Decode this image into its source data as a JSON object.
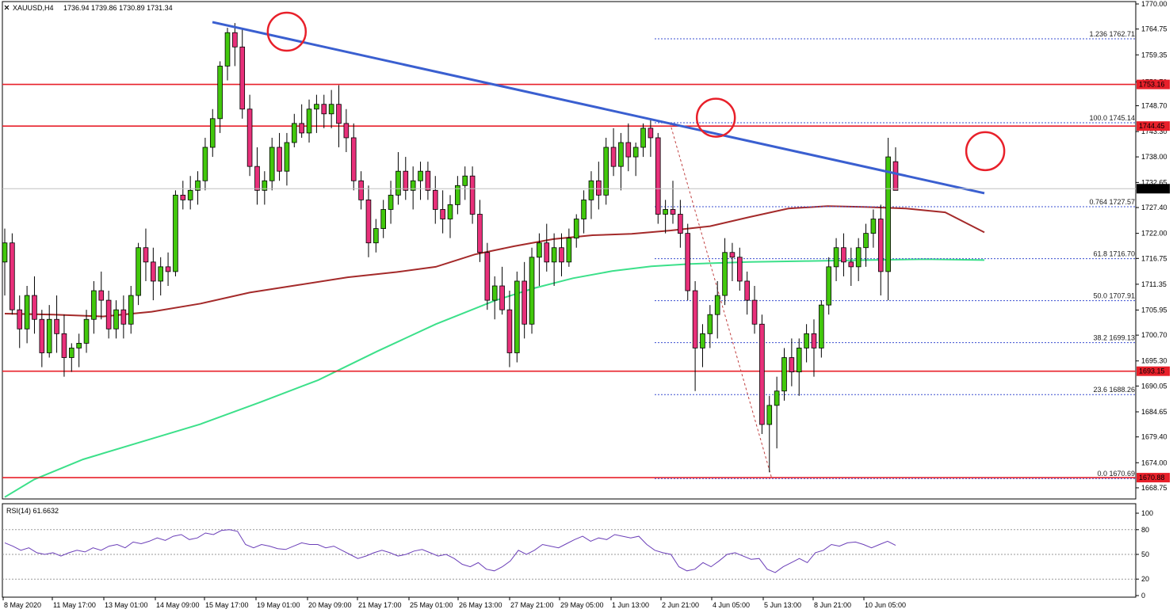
{
  "header": {
    "symbol": "XAUUSD,H4",
    "ohlc": "1736.94 1739.86 1730.89 1731.34"
  },
  "chart_data": {
    "type": "candlestick",
    "ylim": [
      1666.75,
      1770.0
    ],
    "price_ticks": [
      "1770.00",
      "1764.75",
      "1759.35",
      "1753.70",
      "1748.70",
      "1743.30",
      "1738.00",
      "1732.65",
      "1727.40",
      "1722.00",
      "1716.75",
      "1711.35",
      "1705.95",
      "1700.70",
      "1695.30",
      "1690.05",
      "1684.65",
      "1679.40",
      "1674.00",
      "1668.75"
    ],
    "time_labels": [
      "8 May 2020",
      "11 May 17:00",
      "13 May 01:00",
      "14 May 09:00",
      "15 May 17:00",
      "19 May 01:00",
      "20 May 09:00",
      "21 May 17:00",
      "25 May 01:00",
      "26 May 13:00",
      "27 May 21:00",
      "29 May 05:00",
      "1 Jun 13:00",
      "2 Jun 21:00",
      "4 Jun 05:00",
      "5 Jun 13:00",
      "8 Jun 21:00",
      "10 Jun 05:00"
    ],
    "current_price": "1731.34",
    "horizontal_levels": [
      {
        "value": 1753.16,
        "label": "1753.16",
        "color": "#e8202a"
      },
      {
        "value": 1744.45,
        "label": "1744.45",
        "color": "#e8202a"
      },
      {
        "value": 1693.15,
        "label": "1693.15",
        "color": "#e8202a"
      },
      {
        "value": 1670.88,
        "label": "1670.88",
        "color": "#e8202a"
      }
    ],
    "fibonacci": [
      {
        "value": 1762.71,
        "label": "1.236 1762.71"
      },
      {
        "value": 1745.14,
        "label": "100.0 1745.14"
      },
      {
        "value": 1727.57,
        "label": "0.764 1727.57"
      },
      {
        "value": 1716.7,
        "label": "61.8 1716.70"
      },
      {
        "value": 1707.91,
        "label": "50.0 1707.91"
      },
      {
        "value": 1699.13,
        "label": "38.2 1699.13"
      },
      {
        "value": 1688.26,
        "label": "23.6 1688.26"
      },
      {
        "value": 1670.69,
        "label": "0.0 1670.69"
      }
    ],
    "trendline": {
      "start": [
        0.0,
        1766.2
      ],
      "end": [
        1.0,
        1730.4
      ],
      "color": "#3a5fd0"
    },
    "candles": [
      [
        1716,
        1723,
        1709,
        1720
      ],
      [
        1720,
        1722,
        1705,
        1706
      ],
      [
        1706,
        1709,
        1698,
        1702
      ],
      [
        1702,
        1711,
        1699,
        1709
      ],
      [
        1709,
        1713,
        1701,
        1704
      ],
      [
        1704,
        1706,
        1694,
        1697
      ],
      [
        1697,
        1707,
        1696,
        1704
      ],
      [
        1704,
        1709,
        1697,
        1701
      ],
      [
        1701,
        1705,
        1692,
        1696
      ],
      [
        1696,
        1699,
        1693,
        1698
      ],
      [
        1698,
        1701,
        1694,
        1699
      ],
      [
        1699,
        1706,
        1697,
        1704
      ],
      [
        1704,
        1712,
        1701,
        1710
      ],
      [
        1710,
        1714,
        1704,
        1708
      ],
      [
        1708,
        1710,
        1700,
        1702
      ],
      [
        1702,
        1708,
        1700,
        1706
      ],
      [
        1706,
        1709,
        1700,
        1703
      ],
      [
        1703,
        1711,
        1701,
        1709
      ],
      [
        1709,
        1720,
        1707,
        1719
      ],
      [
        1719,
        1723,
        1712,
        1716
      ],
      [
        1716,
        1719,
        1708,
        1712
      ],
      [
        1712,
        1717,
        1709,
        1715
      ],
      [
        1715,
        1718,
        1711,
        1714
      ],
      [
        1714,
        1731,
        1713,
        1730
      ],
      [
        1730,
        1733,
        1727,
        1729
      ],
      [
        1729,
        1734,
        1727,
        1731
      ],
      [
        1731,
        1735,
        1728,
        1733
      ],
      [
        1733,
        1742,
        1731,
        1740
      ],
      [
        1740,
        1748,
        1738,
        1746
      ],
      [
        1746,
        1758,
        1743,
        1757
      ],
      [
        1757,
        1765,
        1754,
        1764
      ],
      [
        1764,
        1766,
        1757,
        1761
      ],
      [
        1761,
        1765,
        1746,
        1748
      ],
      [
        1748,
        1751,
        1734,
        1736
      ],
      [
        1736,
        1740,
        1728,
        1731
      ],
      [
        1731,
        1735,
        1728,
        1733
      ],
      [
        1733,
        1742,
        1731,
        1740
      ],
      [
        1740,
        1743,
        1733,
        1735
      ],
      [
        1735,
        1743,
        1732,
        1741
      ],
      [
        1741,
        1747,
        1740,
        1745
      ],
      [
        1745,
        1749,
        1742,
        1743
      ],
      [
        1743,
        1750,
        1741,
        1748
      ],
      [
        1748,
        1751,
        1743,
        1749
      ],
      [
        1749,
        1751,
        1744,
        1747
      ],
      [
        1747,
        1752,
        1744,
        1749
      ],
      [
        1749,
        1753,
        1740,
        1745
      ],
      [
        1745,
        1748,
        1739,
        1742
      ],
      [
        1742,
        1745,
        1731,
        1733
      ],
      [
        1733,
        1735,
        1727,
        1729
      ],
      [
        1729,
        1732,
        1717,
        1720
      ],
      [
        1720,
        1725,
        1718,
        1723
      ],
      [
        1723,
        1729,
        1721,
        1727
      ],
      [
        1727,
        1733,
        1724,
        1730
      ],
      [
        1730,
        1739,
        1728,
        1735
      ],
      [
        1735,
        1738,
        1729,
        1731
      ],
      [
        1731,
        1736,
        1727,
        1733
      ],
      [
        1733,
        1737,
        1729,
        1735
      ],
      [
        1735,
        1737,
        1729,
        1731
      ],
      [
        1731,
        1734,
        1724,
        1727
      ],
      [
        1727,
        1731,
        1722,
        1725
      ],
      [
        1725,
        1730,
        1721,
        1728
      ],
      [
        1728,
        1734,
        1726,
        1732
      ],
      [
        1732,
        1736,
        1729,
        1734
      ],
      [
        1734,
        1736,
        1724,
        1726
      ],
      [
        1726,
        1729,
        1716,
        1718
      ],
      [
        1718,
        1720,
        1706,
        1708
      ],
      [
        1708,
        1713,
        1704,
        1711
      ],
      [
        1711,
        1715,
        1705,
        1706
      ],
      [
        1706,
        1710,
        1694,
        1697
      ],
      [
        1697,
        1714,
        1695,
        1712
      ],
      [
        1712,
        1716,
        1700,
        1703
      ],
      [
        1703,
        1719,
        1701,
        1717
      ],
      [
        1717,
        1722,
        1711,
        1720
      ],
      [
        1720,
        1724,
        1714,
        1716
      ],
      [
        1716,
        1722,
        1711,
        1719
      ],
      [
        1719,
        1722,
        1713,
        1716
      ],
      [
        1716,
        1723,
        1715,
        1721
      ],
      [
        1721,
        1726,
        1719,
        1725
      ],
      [
        1725,
        1731,
        1722,
        1729
      ],
      [
        1729,
        1735,
        1725,
        1733
      ],
      [
        1733,
        1737,
        1727,
        1730
      ],
      [
        1730,
        1742,
        1728,
        1740
      ],
      [
        1740,
        1744,
        1734,
        1736
      ],
      [
        1736,
        1743,
        1731,
        1741
      ],
      [
        1741,
        1745,
        1735,
        1738
      ],
      [
        1738,
        1741,
        1734,
        1740
      ],
      [
        1740,
        1745,
        1738,
        1744
      ],
      [
        1744,
        1746,
        1738,
        1742
      ],
      [
        1742,
        1743,
        1724,
        1726
      ],
      [
        1726,
        1729,
        1722,
        1727
      ],
      [
        1727,
        1733,
        1724,
        1726
      ],
      [
        1726,
        1729,
        1719,
        1722
      ],
      [
        1722,
        1724,
        1708,
        1710
      ],
      [
        1710,
        1712,
        1689,
        1698
      ],
      [
        1698,
        1703,
        1694,
        1701
      ],
      [
        1701,
        1707,
        1698,
        1705
      ],
      [
        1705,
        1712,
        1700,
        1709
      ],
      [
        1709,
        1721,
        1707,
        1718
      ],
      [
        1718,
        1720,
        1712,
        1717
      ],
      [
        1717,
        1719,
        1710,
        1712
      ],
      [
        1712,
        1714,
        1705,
        1708
      ],
      [
        1708,
        1711,
        1701,
        1703
      ],
      [
        1703,
        1705,
        1680,
        1682
      ],
      [
        1682,
        1688,
        1672,
        1686
      ],
      [
        1686,
        1692,
        1677,
        1689
      ],
      [
        1689,
        1698,
        1687,
        1696
      ],
      [
        1696,
        1700,
        1690,
        1693
      ],
      [
        1693,
        1700,
        1688,
        1698
      ],
      [
        1698,
        1703,
        1695,
        1701
      ],
      [
        1701,
        1704,
        1692,
        1698
      ],
      [
        1698,
        1708,
        1696,
        1707
      ],
      [
        1707,
        1717,
        1705,
        1715
      ],
      [
        1715,
        1721,
        1712,
        1719
      ],
      [
        1719,
        1722,
        1713,
        1716
      ],
      [
        1716,
        1719,
        1711,
        1715
      ],
      [
        1715,
        1721,
        1712,
        1719
      ],
      [
        1719,
        1724,
        1715,
        1722
      ],
      [
        1722,
        1727,
        1719,
        1725
      ],
      [
        1725,
        1728,
        1709,
        1714
      ],
      [
        1714,
        1742,
        1708,
        1738
      ],
      [
        1737,
        1740,
        1731,
        1731
      ]
    ],
    "ma_red": [
      [
        0.0,
        1705.2
      ],
      [
        0.05,
        1705.0
      ],
      [
        0.1,
        1704.6
      ],
      [
        0.15,
        1705.6
      ],
      [
        0.2,
        1707.3
      ],
      [
        0.25,
        1709.6
      ],
      [
        0.3,
        1711.2
      ],
      [
        0.35,
        1712.8
      ],
      [
        0.4,
        1713.9
      ],
      [
        0.44,
        1715.0
      ],
      [
        0.48,
        1717.6
      ],
      [
        0.52,
        1719.3
      ],
      [
        0.56,
        1720.8
      ],
      [
        0.6,
        1721.6
      ],
      [
        0.64,
        1721.9
      ],
      [
        0.68,
        1722.6
      ],
      [
        0.72,
        1723.5
      ],
      [
        0.76,
        1725.4
      ],
      [
        0.8,
        1727.2
      ],
      [
        0.84,
        1727.7
      ],
      [
        0.88,
        1727.5
      ],
      [
        0.92,
        1727.2
      ],
      [
        0.96,
        1726.4
      ],
      [
        1.0,
        1722.2
      ]
    ],
    "ma_green": [
      [
        0.0,
        1666.8
      ],
      [
        0.03,
        1670.5
      ],
      [
        0.08,
        1674.7
      ],
      [
        0.14,
        1678.4
      ],
      [
        0.2,
        1682.1
      ],
      [
        0.26,
        1686.6
      ],
      [
        0.32,
        1691.3
      ],
      [
        0.38,
        1697.3
      ],
      [
        0.44,
        1703.0
      ],
      [
        0.5,
        1707.9
      ],
      [
        0.54,
        1710.5
      ],
      [
        0.58,
        1712.6
      ],
      [
        0.62,
        1714.1
      ],
      [
        0.66,
        1715.1
      ],
      [
        0.7,
        1715.6
      ],
      [
        0.76,
        1716.0
      ],
      [
        0.82,
        1716.2
      ],
      [
        0.88,
        1716.4
      ],
      [
        0.94,
        1716.6
      ],
      [
        1.0,
        1716.4
      ]
    ],
    "rsi": {
      "label": "RSI(14) 61.6632",
      "ticks": [
        "100",
        "80",
        "50",
        "20",
        "0"
      ],
      "levels": [
        80,
        50,
        20
      ],
      "values": [
        64,
        60,
        55,
        58,
        52,
        50,
        52,
        48,
        52,
        55,
        53,
        58,
        55,
        60,
        62,
        58,
        65,
        63,
        66,
        70,
        67,
        72,
        74,
        68,
        70,
        76,
        74,
        79,
        80,
        78,
        62,
        58,
        62,
        60,
        57,
        56,
        60,
        64,
        62,
        62,
        58,
        60,
        55,
        50,
        45,
        48,
        52,
        55,
        52,
        48,
        50,
        54,
        56,
        52,
        48,
        50,
        45,
        38,
        35,
        40,
        32,
        30,
        35,
        42,
        55,
        50,
        55,
        62,
        60,
        58,
        63,
        68,
        72,
        66,
        70,
        68,
        74,
        72,
        70,
        72,
        62,
        55,
        52,
        50,
        35,
        30,
        32,
        40,
        35,
        42,
        50,
        52,
        48,
        44,
        45,
        32,
        28,
        35,
        40,
        45,
        40,
        52,
        55,
        62,
        60,
        64,
        65,
        62,
        58,
        62,
        66,
        61
      ]
    },
    "annotations": [
      {
        "type": "circle",
        "at": [
          0.262,
          1764.2
        ],
        "color": "#e8202a"
      },
      {
        "type": "circle",
        "at": [
          0.7,
          1746.2
        ],
        "color": "#e8202a"
      },
      {
        "type": "circle",
        "at": [
          0.975,
          1739.2
        ],
        "color": "#e8202a"
      }
    ]
  },
  "colors": {
    "bull": "#42c80c",
    "bear": "#e8307a",
    "outline": "#000000",
    "level": "#e8202a",
    "fib": "#3a4fd0",
    "ma_red": "#a42a2a",
    "ma_green": "#3ce08a",
    "trend": "#3a5fd0",
    "rsi_line": "#6b3fb8",
    "grid_dash": "#9a9a9a"
  }
}
